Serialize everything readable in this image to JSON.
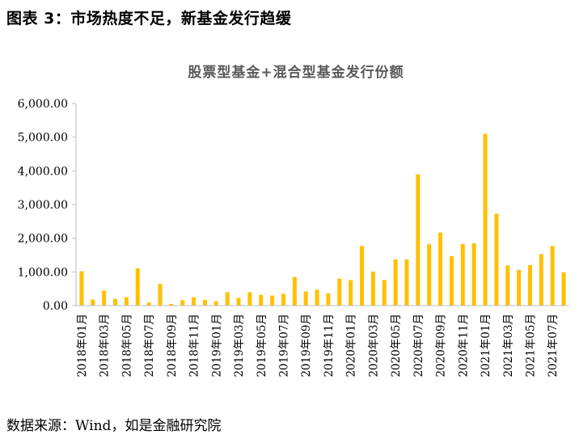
{
  "figure": {
    "caption": "图表 3：市场热度不足，新基金发行趋缓",
    "source": "数据来源：Wind，如是金融研究院"
  },
  "chart_data": {
    "type": "bar",
    "title": "股票型基金+混合型基金发行份额",
    "xlabel": "",
    "ylabel": "",
    "ylim": [
      0,
      6000
    ],
    "yticks": [
      "0.00",
      "1,000.00",
      "2,000.00",
      "3,000.00",
      "4,000.00",
      "5,000.00",
      "6,000.00"
    ],
    "grid": false,
    "legend": "none",
    "bar_color": "#FFC000",
    "categories": [
      "2018年01月",
      "2018年02月",
      "2018年03月",
      "2018年04月",
      "2018年05月",
      "2018年06月",
      "2018年07月",
      "2018年08月",
      "2018年09月",
      "2018年10月",
      "2018年11月",
      "2018年12月",
      "2019年01月",
      "2019年02月",
      "2019年03月",
      "2019年04月",
      "2019年05月",
      "2019年06月",
      "2019年07月",
      "2019年08月",
      "2019年09月",
      "2019年10月",
      "2019年11月",
      "2019年12月",
      "2020年01月",
      "2020年02月",
      "2020年03月",
      "2020年04月",
      "2020年05月",
      "2020年06月",
      "2020年07月",
      "2020年08月",
      "2020年09月",
      "2020年10月",
      "2020年11月",
      "2020年12月",
      "2021年01月",
      "2021年02月",
      "2021年03月",
      "2021年04月",
      "2021年05月",
      "2021年06月",
      "2021年07月",
      "2021年08月"
    ],
    "shown_labels": [
      "2018年01月",
      "2018年03月",
      "2018年05月",
      "2018年07月",
      "2018年09月",
      "2018年11月",
      "2019年01月",
      "2019年03月",
      "2019年05月",
      "2019年07月",
      "2019年09月",
      "2019年11月",
      "2020年01月",
      "2020年03月",
      "2020年05月",
      "2020年07月",
      "2020年09月",
      "2020年11月",
      "2021年01月",
      "2021年03月",
      "2021年05月",
      "2021年07月"
    ],
    "values": [
      1020,
      180,
      450,
      200,
      250,
      1110,
      90,
      650,
      50,
      160,
      250,
      170,
      130,
      400,
      230,
      400,
      320,
      300,
      350,
      850,
      420,
      470,
      360,
      800,
      760,
      1770,
      1010,
      760,
      1370,
      1370,
      3900,
      1820,
      2170,
      1470,
      1830,
      1850,
      5100,
      2730,
      1190,
      1060,
      1200,
      1530,
      1770,
      990
    ]
  }
}
